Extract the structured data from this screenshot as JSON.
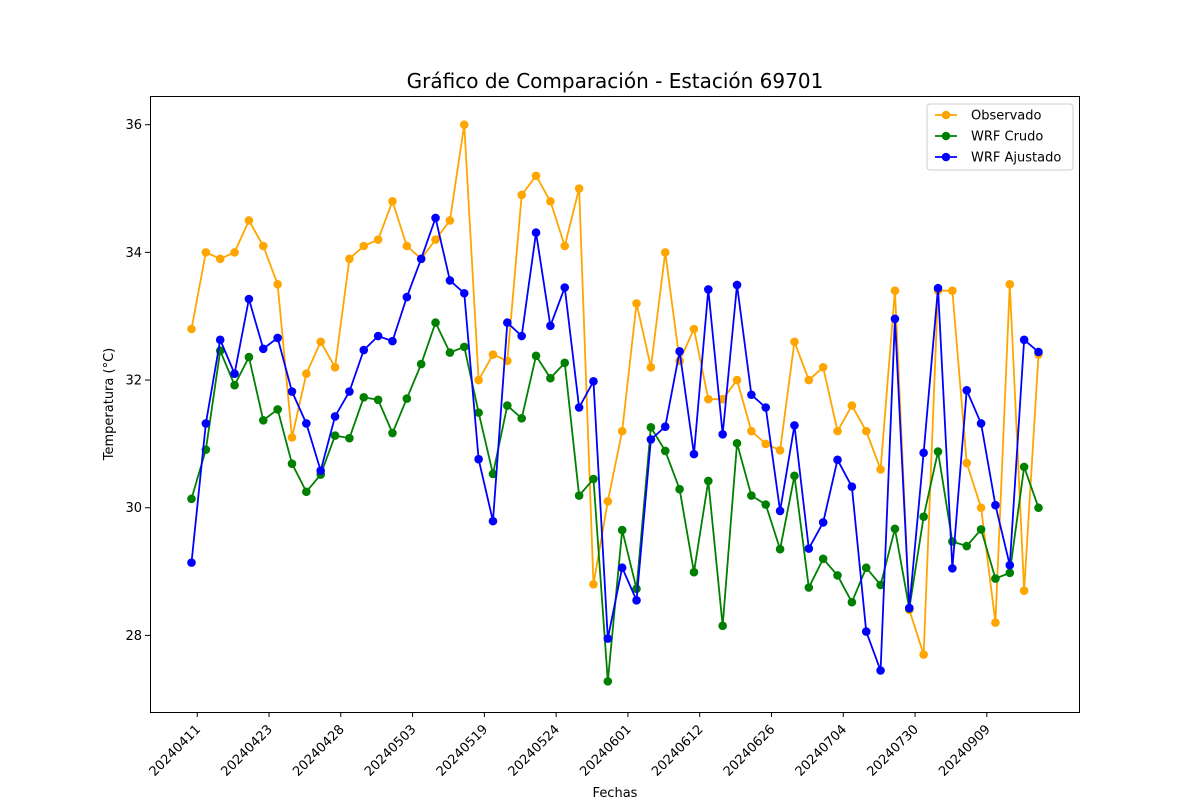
{
  "chart_data": {
    "type": "line",
    "title": "Gráfico de Comparación - Estación 69701",
    "xlabel": "Fechas",
    "ylabel": "Temperatura (°C)",
    "ylim": [
      26.8,
      36.45
    ],
    "yticks": [
      28,
      30,
      32,
      34,
      36
    ],
    "xtick_labels": [
      "20240411",
      "20240423",
      "20240428",
      "20240503",
      "20240519",
      "20240524",
      "20240601",
      "20240612",
      "20240626",
      "20240704",
      "20240730",
      "20240909"
    ],
    "xtick_every": 5,
    "xtick_offset": 0.4,
    "grid": false,
    "legend_position": "top-right",
    "series": [
      {
        "name": "Observado",
        "color": "#ffa500",
        "values": [
          32.8,
          34.0,
          33.9,
          34.0,
          34.5,
          34.1,
          33.5,
          31.1,
          32.1,
          32.6,
          32.2,
          33.9,
          34.1,
          34.2,
          34.8,
          34.1,
          33.9,
          34.2,
          34.5,
          36.0,
          32.0,
          32.4,
          32.3,
          34.9,
          35.2,
          34.8,
          34.1,
          35.0,
          28.8,
          30.1,
          31.2,
          33.2,
          32.2,
          34.0,
          32.3,
          32.8,
          31.7,
          31.7,
          32.0,
          31.2,
          31.0,
          30.9,
          32.6,
          32.0,
          32.2,
          31.2,
          31.6,
          31.2,
          30.6,
          33.4,
          28.4,
          27.7,
          33.4,
          33.4,
          30.7,
          30.0,
          28.2,
          33.5,
          28.7,
          32.4
        ]
      },
      {
        "name": "WRF Crudo",
        "color": "#008000",
        "values": [
          30.14,
          30.91,
          32.46,
          31.92,
          32.36,
          31.37,
          31.54,
          30.69,
          30.25,
          30.52,
          31.13,
          31.09,
          31.73,
          31.69,
          31.17,
          31.71,
          32.25,
          32.9,
          32.43,
          32.52,
          31.49,
          30.53,
          31.6,
          31.4,
          32.38,
          32.03,
          32.27,
          30.19,
          30.45,
          27.28,
          29.65,
          28.73,
          31.26,
          30.89,
          30.29,
          28.99,
          30.42,
          28.15,
          31.01,
          30.19,
          30.05,
          29.35,
          30.5,
          28.75,
          29.2,
          28.94,
          28.52,
          29.06,
          28.79,
          29.67,
          28.42,
          29.86,
          30.88,
          29.47,
          29.4,
          29.66,
          28.89,
          28.98,
          30.64,
          30.0
        ]
      },
      {
        "name": "WRF Ajustado",
        "color": "#0000ff",
        "values": [
          29.14,
          31.32,
          32.63,
          32.1,
          33.27,
          32.49,
          32.66,
          31.82,
          31.32,
          30.58,
          31.43,
          31.82,
          32.47,
          32.69,
          32.61,
          33.3,
          33.9,
          34.54,
          33.56,
          33.36,
          30.76,
          29.79,
          32.9,
          32.69,
          34.31,
          32.85,
          33.45,
          31.57,
          31.98,
          27.95,
          29.06,
          28.55,
          31.07,
          31.27,
          32.45,
          30.84,
          33.42,
          31.15,
          33.49,
          31.77,
          31.57,
          29.95,
          31.29,
          29.36,
          29.77,
          30.75,
          30.33,
          28.06,
          27.45,
          32.96,
          28.43,
          30.86,
          33.44,
          29.05,
          31.84,
          31.32,
          30.04,
          29.1,
          32.63,
          32.44
        ]
      }
    ]
  }
}
